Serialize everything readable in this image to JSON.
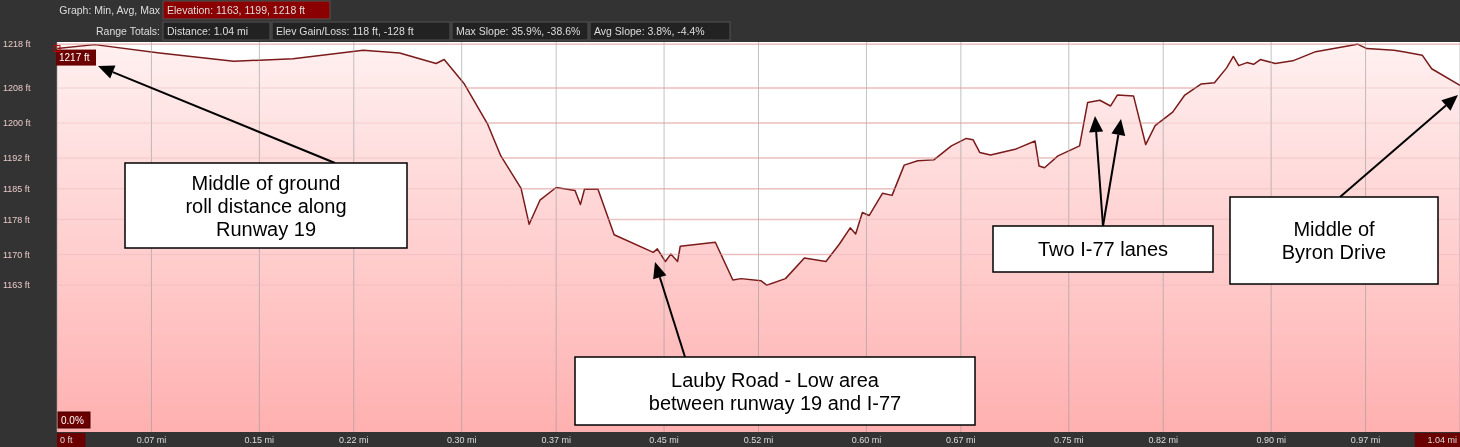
{
  "chart_data": {
    "type": "area",
    "x": [
      0,
      0.028,
      0.076,
      0.131,
      0.175,
      0.227,
      0.254,
      0.281,
      0.287,
      0.302,
      0.319,
      0.329,
      0.344,
      0.35,
      0.358,
      0.37,
      0.384,
      0.388,
      0.391,
      0.401,
      0.413,
      0.442,
      0.445,
      0.451,
      0.455,
      0.46,
      0.462,
      0.488,
      0.501,
      0.507,
      0.522,
      0.526,
      0.54,
      0.554,
      0.57,
      0.58,
      0.588,
      0.592,
      0.597,
      0.602,
      0.612,
      0.619,
      0.628,
      0.638,
      0.65,
      0.663,
      0.674,
      0.679,
      0.684,
      0.692,
      0.711,
      0.725,
      0.728,
      0.732,
      0.742,
      0.758,
      0.764,
      0.773,
      0.781,
      0.786,
      0.798,
      0.807,
      0.814,
      0.827,
      0.836,
      0.848,
      0.858,
      0.867,
      0.872,
      0.876,
      0.882,
      0.887,
      0.892,
      0.903,
      0.916,
      0.933,
      0.964,
      0.971,
      0.991,
      0.998,
      1.012,
      1.019,
      1.04
    ],
    "series": [
      {
        "color": "#7a1a1a",
        "values": [
          1217,
          1217.9,
          1216,
          1214.1,
          1214.7,
          1216.6,
          1216,
          1213.6,
          1214.5,
          1208.9,
          1199.9,
          1192.5,
          1185.1,
          1176.9,
          1182.4,
          1185.3,
          1184.6,
          1181.4,
          1184.9,
          1184.9,
          1174.5,
          1170.5,
          1171.3,
          1168.4,
          1170.1,
          1168.4,
          1171.9,
          1172.8,
          1164.2,
          1164.5,
          1164,
          1163,
          1164.5,
          1169.2,
          1168.4,
          1172.4,
          1176.1,
          1174.7,
          1179.6,
          1178.9,
          1184,
          1183.5,
          1190.4,
          1191.4,
          1191.6,
          1194.8,
          1196.5,
          1196.2,
          1193.3,
          1192.7,
          1194.1,
          1195.9,
          1190.2,
          1189.8,
          1192.5,
          1194.8,
          1204.7,
          1205.2,
          1203.9,
          1206.4,
          1206.2,
          1195.1,
          1199.4,
          1202.5,
          1206.4,
          1208.9,
          1209.2,
          1212.6,
          1215.2,
          1213.1,
          1213.8,
          1213.4,
          1214.5,
          1213.6,
          1214.2,
          1216.3,
          1218,
          1217,
          1216.6,
          1216.3,
          1215.5,
          1212.4,
          1208.6
        ]
      }
    ],
    "xlim": [
      0,
      1.04
    ],
    "xticks": [
      {
        "value": 0,
        "label": "0 ft"
      },
      {
        "value": 0.07,
        "label": "0.07 mi"
      },
      {
        "value": 0.15,
        "label": "0.15 mi"
      },
      {
        "value": 0.22,
        "label": "0.22 mi"
      },
      {
        "value": 0.3,
        "label": "0.30 mi"
      },
      {
        "value": 0.37,
        "label": "0.37 mi"
      },
      {
        "value": 0.45,
        "label": "0.45 mi"
      },
      {
        "value": 0.52,
        "label": "0.52 mi"
      },
      {
        "value": 0.6,
        "label": "0.60 mi"
      },
      {
        "value": 0.67,
        "label": "0.67 mi"
      },
      {
        "value": 0.75,
        "label": "0.75 mi"
      },
      {
        "value": 0.82,
        "label": "0.82 mi"
      },
      {
        "value": 0.9,
        "label": "0.90 mi"
      },
      {
        "value": 0.97,
        "label": "0.97 mi"
      },
      {
        "value": 1.04,
        "label": "1.04 mi"
      }
    ],
    "ylim": [
      1129.5,
      1218.5
    ],
    "yticks": [
      {
        "value": 1218,
        "label": "1218 ft"
      },
      {
        "value": 1208,
        "label": "1208 ft"
      },
      {
        "value": 1200,
        "label": "1200 ft"
      },
      {
        "value": 1192,
        "label": "1192 ft"
      },
      {
        "value": 1185,
        "label": "1185 ft"
      },
      {
        "value": 1178,
        "label": "1178 ft"
      },
      {
        "value": 1170,
        "label": "1170 ft"
      },
      {
        "value": 1163,
        "label": "1163 ft"
      }
    ],
    "grid": true,
    "annotations": [
      "Graph: Min, Avg, Max",
      "Elevation: 1163, 1199, 1218 ft",
      "Range Totals:",
      "Distance: 1.04 mi",
      "Elev Gain/Loss: 118 ft, -128 ft",
      "Max Slope: 35.9%, -38.6%",
      "Avg Slope: 3.8%, -4.4%",
      "0.0%",
      {
        "text": "1217 ft",
        "x": 0,
        "y": 1217
      },
      "Middle of ground roll distance along Runway 19",
      "Lauby Road - Low area between runway 19 and I-77",
      "Two I-77 lanes",
      "Middle of Byron Drive"
    ]
  }
}
